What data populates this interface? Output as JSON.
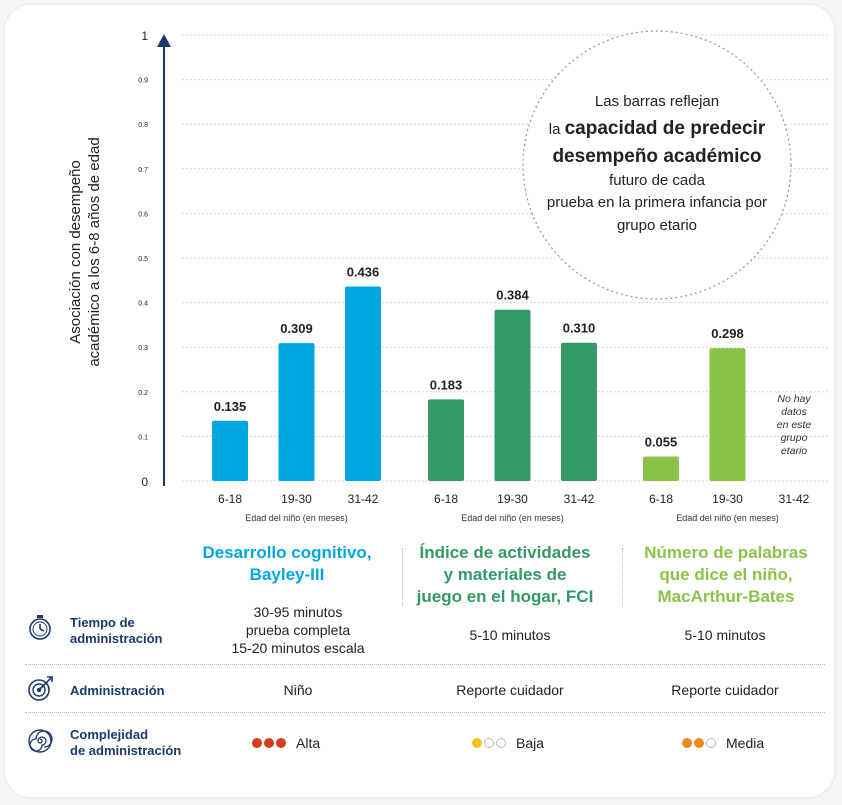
{
  "chart_data": {
    "type": "bar",
    "ylabel_lines": [
      "Asociación con desempeño",
      "académico a los 6-8 años de edad"
    ],
    "ylim": [
      0,
      1
    ],
    "yticks": [
      "0",
      "0.1",
      "0.2",
      "0.3",
      "0.4",
      "0.5",
      "0.6",
      "0.7",
      "0.8",
      "0.9",
      "1"
    ],
    "xlabel": "Edad del niño (en meses)",
    "categories": [
      "6-18",
      "19-30",
      "31-42"
    ],
    "groups": [
      {
        "color": "#00a6e0",
        "values": [
          0.135,
          0.309,
          0.436
        ],
        "labels": [
          "0.135",
          "0.309",
          "0.436"
        ]
      },
      {
        "color": "#339966",
        "values": [
          0.183,
          0.384,
          0.31
        ],
        "labels": [
          "0.183",
          "0.384",
          "0.310"
        ]
      },
      {
        "color": "#8bc34a",
        "values": [
          0.055,
          0.298,
          null
        ],
        "labels": [
          "0.055",
          "0.298",
          ""
        ]
      }
    ],
    "no_data_note": [
      "No hay",
      "datos",
      "en este",
      "grupo",
      "etario"
    ],
    "callout": {
      "line1": "Las barras reflejan",
      "line2_prefix": "la ",
      "line2_bold": "capacidad de predecir",
      "line3_bold": "desempeño académico",
      "line4": "futuro de cada",
      "line5": "prueba en la primera infancia por",
      "line6": "grupo etario"
    },
    "grid": true
  },
  "categories_info": [
    {
      "title": [
        "Desarrollo cognitivo,",
        "Bayley-III"
      ],
      "color": "#00a6e0"
    },
    {
      "title": [
        "Índice de actividades",
        "y materiales de",
        "juego en el hogar, FCI"
      ],
      "color": "#339966"
    },
    {
      "title": [
        "Número de palabras",
        "que dice el niño,",
        "MacArthur-Bates"
      ],
      "color": "#8bc34a"
    }
  ],
  "table": {
    "tiempo": {
      "label": [
        "Tiempo de",
        "administración"
      ],
      "icon": "stopwatch-icon",
      "values": [
        [
          "30-95 minutos",
          "prueba completa",
          "15-20 minutos escala"
        ],
        [
          "5-10 minutos"
        ],
        [
          "5-10 minutos"
        ]
      ]
    },
    "administracion": {
      "label": [
        "Administración"
      ],
      "icon": "target-icon",
      "values": [
        "Niño",
        "Reporte cuidador",
        "Reporte cuidador"
      ]
    },
    "complejidad": {
      "label": [
        "Complejidad",
        "de administración"
      ],
      "icon": "spiral-icon",
      "values": [
        {
          "text": "Alta",
          "filled": 3,
          "color": "#d9391c"
        },
        {
          "text": "Baja",
          "filled": 1,
          "color": "#f0c31c"
        },
        {
          "text": "Media",
          "filled": 2,
          "color": "#ee8b1f"
        }
      ]
    }
  },
  "colors": {
    "navy": "#1b3a6b",
    "axis": "#1b3a6b",
    "grid": "#c8c8c8"
  }
}
